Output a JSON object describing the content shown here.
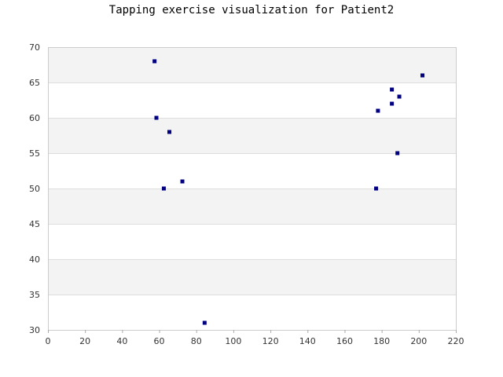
{
  "chart_data": {
    "type": "scatter",
    "title": "Tapping exercise visualization for Patient2",
    "xlabel": "",
    "ylabel": "",
    "xlim": [
      0,
      220
    ],
    "ylim": [
      30,
      70
    ],
    "x_ticks": [
      0,
      20,
      40,
      60,
      80,
      100,
      120,
      140,
      160,
      180,
      200,
      220
    ],
    "y_ticks": [
      30,
      35,
      40,
      45,
      50,
      55,
      60,
      65,
      70
    ],
    "grid": "horizontal bands",
    "legend": "none",
    "marker_color": "#000080",
    "band_color": "#f3f3f3",
    "grid_color": "#dddddd",
    "points": [
      {
        "x": 57.5,
        "y": 68
      },
      {
        "x": 58.5,
        "y": 60
      },
      {
        "x": 62.5,
        "y": 50
      },
      {
        "x": 65.5,
        "y": 58
      },
      {
        "x": 72.5,
        "y": 51
      },
      {
        "x": 84.5,
        "y": 31
      },
      {
        "x": 177,
        "y": 50
      },
      {
        "x": 178,
        "y": 61
      },
      {
        "x": 185.5,
        "y": 64
      },
      {
        "x": 185.5,
        "y": 62
      },
      {
        "x": 188.5,
        "y": 55
      },
      {
        "x": 189.5,
        "y": 63
      },
      {
        "x": 202,
        "y": 66
      }
    ]
  }
}
